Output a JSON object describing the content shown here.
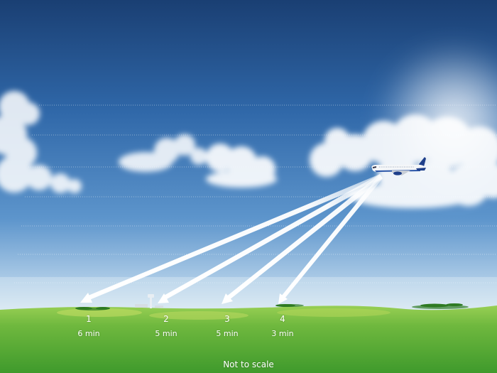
{
  "colors": {
    "sky_top": "#1f4f8c",
    "sky_mid": "#3f7fc0",
    "sky_horizon": "#b8d4ea",
    "ground_light": "#8ccc4c",
    "ground_dark": "#3f9a2c",
    "arrow": "#ffffff"
  },
  "icons": {
    "aircraft": "airplane-icon",
    "tower": "control-tower-icon"
  },
  "spots": [
    {
      "id": "1",
      "label": "1",
      "time": "6 min"
    },
    {
      "id": "2",
      "label": "2",
      "time": "5 min"
    },
    {
      "id": "3",
      "label": "3",
      "time": "5 min"
    },
    {
      "id": "4",
      "label": "4",
      "time": "3 min"
    }
  ],
  "footer": {
    "note": "Not to scale"
  }
}
